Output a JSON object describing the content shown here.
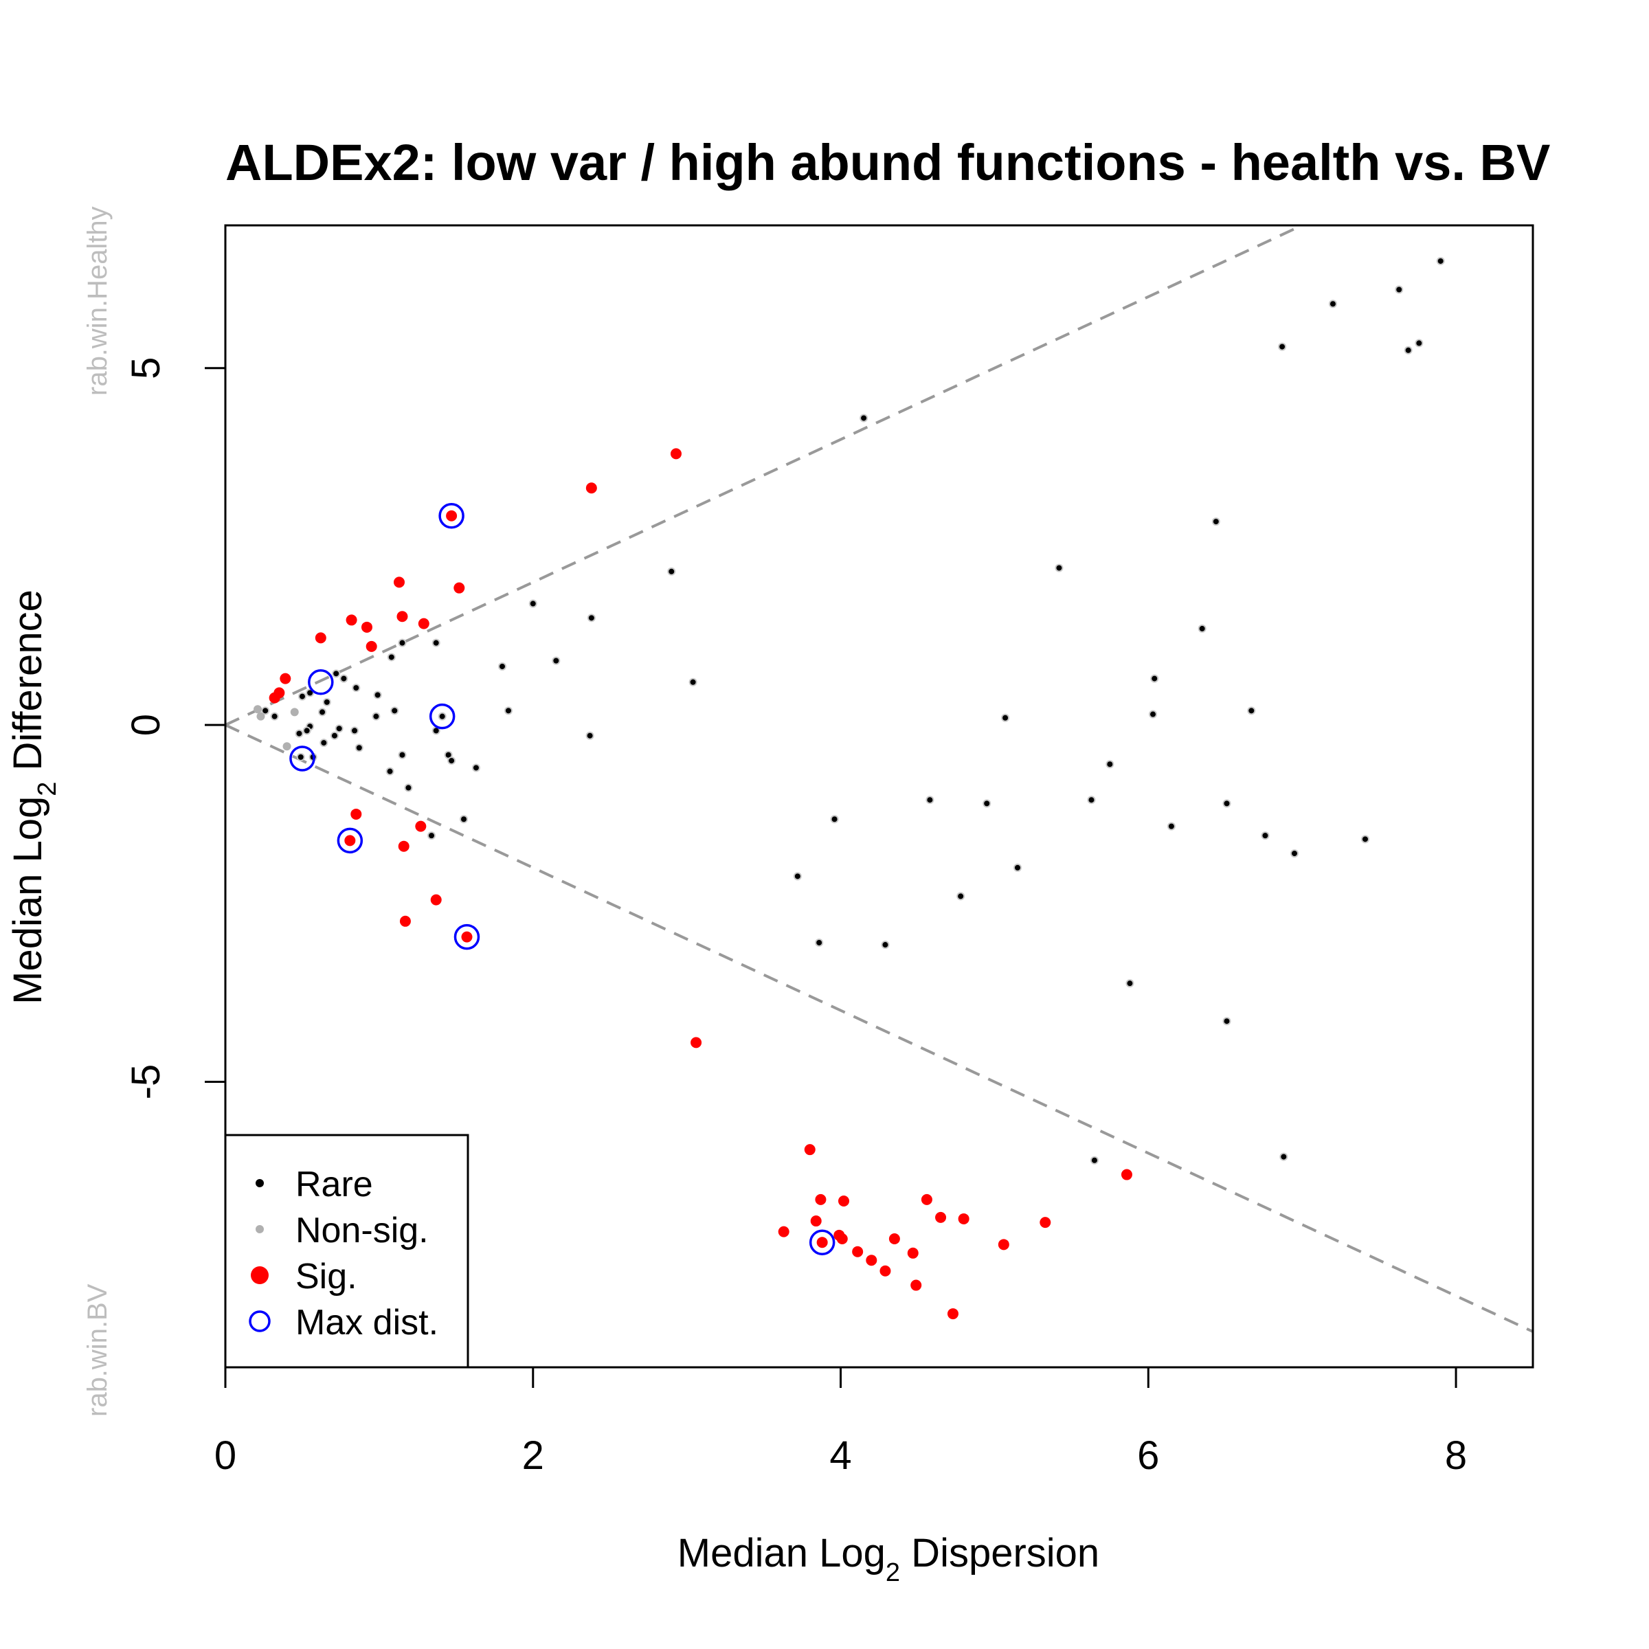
{
  "chart_data": {
    "type": "scatter",
    "title": "ALDEx2: low var / high abund functions - health vs. BV",
    "xlabel": {
      "prefix": "Median  Log",
      "sub": "2",
      "suffix": "  Dispersion"
    },
    "ylabel": {
      "prefix": "Median  Log",
      "sub": "2",
      "suffix": "  Difference"
    },
    "side_labels": {
      "top": "rab.win.Healthy",
      "bottom": "rab.win.BV"
    },
    "xlim": [
      0,
      8.5
    ],
    "ylim": [
      -9,
      7
    ],
    "x_ticks": [
      0,
      2,
      4,
      6,
      8
    ],
    "y_ticks": [
      -5,
      0,
      5
    ],
    "reference_lines": [
      {
        "slope": 1,
        "intercept": 0,
        "style": "dashed",
        "color": "#999999"
      },
      {
        "slope": -1,
        "intercept": 0,
        "style": "dashed",
        "color": "#999999"
      }
    ],
    "legend": {
      "position": "bottom-left",
      "entries": [
        {
          "label": "Rare",
          "color": "#000000",
          "marker": "small-dot"
        },
        {
          "label": "Non-sig.",
          "color": "#b0b0b0",
          "marker": "small-dot"
        },
        {
          "label": "Sig.",
          "color": "#ff0000",
          "marker": "dot"
        },
        {
          "label": "Max dist.",
          "color": "#0000ff",
          "marker": "circle"
        }
      ]
    },
    "series": [
      {
        "name": "Rare",
        "color": "#000000",
        "points": [
          [
            7.9,
            6.5
          ],
          [
            7.63,
            6.1
          ],
          [
            7.2,
            5.9
          ],
          [
            6.87,
            5.3
          ],
          [
            7.69,
            5.25
          ],
          [
            7.76,
            5.35
          ],
          [
            4.15,
            4.3
          ],
          [
            6.44,
            2.85
          ],
          [
            5.42,
            2.2
          ],
          [
            6.35,
            1.35
          ],
          [
            6.04,
            0.65
          ],
          [
            6.03,
            0.15
          ],
          [
            6.67,
            0.2
          ],
          [
            5.07,
            0.1
          ],
          [
            5.75,
            -0.55
          ],
          [
            5.63,
            -1.05
          ],
          [
            6.51,
            -1.1
          ],
          [
            6.15,
            -1.42
          ],
          [
            7.41,
            -1.6
          ],
          [
            6.76,
            -1.55
          ],
          [
            6.95,
            -1.8
          ],
          [
            5.15,
            -2.0
          ],
          [
            4.58,
            -1.05
          ],
          [
            4.95,
            -1.1
          ],
          [
            4.78,
            -2.4
          ],
          [
            3.96,
            -1.32
          ],
          [
            3.72,
            -2.12
          ],
          [
            3.86,
            -3.05
          ],
          [
            4.29,
            -3.08
          ],
          [
            5.88,
            -3.62
          ],
          [
            6.51,
            -4.15
          ],
          [
            5.65,
            -6.1
          ],
          [
            6.88,
            -6.05
          ],
          [
            2.9,
            2.15
          ],
          [
            3.04,
            0.6
          ],
          [
            2.0,
            1.7
          ],
          [
            2.38,
            1.5
          ],
          [
            2.15,
            0.9
          ],
          [
            1.8,
            0.82
          ],
          [
            1.84,
            0.2
          ],
          [
            2.37,
            -0.15
          ],
          [
            1.37,
            1.15
          ],
          [
            1.15,
            1.15
          ],
          [
            1.08,
            0.95
          ],
          [
            1.41,
            0.12
          ],
          [
            1.37,
            -0.08
          ],
          [
            1.45,
            -0.42
          ],
          [
            1.47,
            -0.5
          ],
          [
            1.63,
            -0.6
          ],
          [
            1.55,
            -1.32
          ],
          [
            1.34,
            -1.55
          ],
          [
            1.15,
            -0.42
          ],
          [
            1.19,
            -0.88
          ],
          [
            1.07,
            -0.65
          ],
          [
            1.1,
            0.2
          ],
          [
            0.98,
            0.12
          ],
          [
            0.99,
            0.42
          ],
          [
            0.85,
            0.52
          ],
          [
            0.77,
            0.65
          ],
          [
            0.72,
            0.72
          ],
          [
            0.66,
            0.32
          ],
          [
            0.63,
            0.18
          ],
          [
            0.55,
            0.45
          ],
          [
            0.5,
            0.4
          ],
          [
            0.55,
            -0.02
          ],
          [
            0.53,
            -0.08
          ],
          [
            0.48,
            -0.12
          ],
          [
            0.74,
            -0.05
          ],
          [
            0.71,
            -0.15
          ],
          [
            0.64,
            -0.25
          ],
          [
            0.84,
            -0.08
          ],
          [
            0.87,
            -0.32
          ],
          [
            0.57,
            -0.45
          ],
          [
            0.49,
            -0.45
          ],
          [
            0.32,
            0.12
          ],
          [
            0.26,
            0.2
          ]
        ]
      },
      {
        "name": "Non-sig.",
        "color": "#b0b0b0",
        "points": [
          [
            0.23,
            0.12
          ],
          [
            0.45,
            0.18
          ],
          [
            0.4,
            -0.3
          ],
          [
            0.21,
            0.22
          ]
        ]
      },
      {
        "name": "Sig.",
        "color": "#ff0000",
        "points": [
          [
            2.93,
            3.8
          ],
          [
            2.38,
            3.32
          ],
          [
            1.47,
            2.93
          ],
          [
            1.13,
            2.0
          ],
          [
            1.52,
            1.92
          ],
          [
            1.15,
            1.52
          ],
          [
            0.82,
            1.47
          ],
          [
            1.29,
            1.42
          ],
          [
            0.92,
            1.37
          ],
          [
            0.62,
            1.22
          ],
          [
            0.95,
            1.1
          ],
          [
            0.39,
            0.65
          ],
          [
            0.35,
            0.45
          ],
          [
            0.32,
            0.38
          ],
          [
            0.85,
            -1.25
          ],
          [
            1.27,
            -1.42
          ],
          [
            0.81,
            -1.62
          ],
          [
            1.16,
            -1.7
          ],
          [
            1.37,
            -2.45
          ],
          [
            1.17,
            -2.75
          ],
          [
            1.57,
            -2.97
          ],
          [
            3.06,
            -4.45
          ],
          [
            3.8,
            -5.95
          ],
          [
            3.87,
            -6.65
          ],
          [
            4.02,
            -6.67
          ],
          [
            4.56,
            -6.65
          ],
          [
            4.65,
            -6.9
          ],
          [
            4.8,
            -6.92
          ],
          [
            3.84,
            -6.95
          ],
          [
            5.33,
            -6.97
          ],
          [
            5.86,
            -6.3
          ],
          [
            3.63,
            -7.1
          ],
          [
            3.88,
            -7.25
          ],
          [
            3.99,
            -7.15
          ],
          [
            4.01,
            -7.2
          ],
          [
            4.11,
            -7.38
          ],
          [
            4.2,
            -7.5
          ],
          [
            4.35,
            -7.2
          ],
          [
            4.47,
            -7.4
          ],
          [
            4.29,
            -7.65
          ],
          [
            5.06,
            -7.28
          ],
          [
            4.49,
            -7.85
          ],
          [
            4.73,
            -8.25
          ]
        ]
      },
      {
        "name": "Max dist.",
        "color": "#0000ff",
        "points": [
          [
            1.47,
            2.93
          ],
          [
            0.62,
            0.6
          ],
          [
            1.41,
            0.12
          ],
          [
            0.5,
            -0.47
          ],
          [
            0.81,
            -1.62
          ],
          [
            1.57,
            -2.97
          ],
          [
            3.88,
            -7.25
          ]
        ]
      }
    ]
  }
}
